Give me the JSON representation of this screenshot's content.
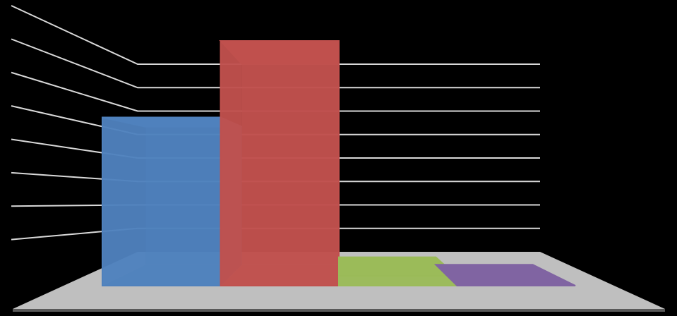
{
  "chart_data": {
    "type": "bar3d",
    "categories": [
      null,
      null,
      null,
      null
    ],
    "values": [
      5.5,
      8,
      0.3,
      0
    ],
    "colors": [
      "#4f81bd",
      "#c0504d",
      "#9bbb59",
      "#8064a2"
    ],
    "ylim": [
      0,
      8
    ],
    "yticks": [
      0,
      1,
      2,
      3,
      4,
      5,
      6,
      7,
      8
    ],
    "grid": true
  }
}
